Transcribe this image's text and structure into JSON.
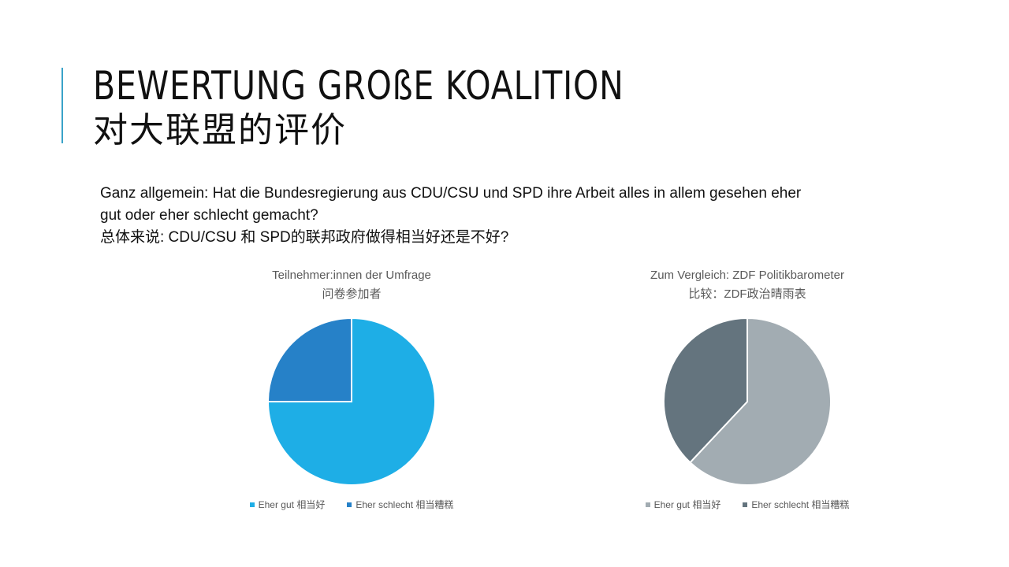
{
  "slide": {
    "title_de": "BEWERTUNG GROßE KOALITION",
    "title_zh": "对大联盟的评价",
    "question_line1": "Ganz allgemein: Hat die Bundesregierung aus CDU/CSU und SPD ihre Arbeit alles in allem gesehen eher",
    "question_line2": "gut oder eher schlecht gemacht?",
    "question_line3": "总体来说: CDU/CSU 和 SPD的联邦政府做得相当好还是不好?"
  },
  "chart_data": [
    {
      "type": "pie",
      "title": "Teilnehmer:innen der Umfrage",
      "subtitle": "问卷参加者",
      "categories": [
        "Eher gut 相当好",
        "Eher schlecht 相当糟糕"
      ],
      "values": [
        75,
        25
      ],
      "colors": [
        "#1eaee6",
        "#2681c8"
      ],
      "legend": "bottom"
    },
    {
      "type": "pie",
      "title": "Zum Vergleich: ZDF Politikbarometer",
      "subtitle": "比较：ZDF政治晴雨表",
      "categories": [
        "Eher gut 相当好",
        "Eher schlecht 相当糟糕"
      ],
      "values": [
        62,
        38
      ],
      "colors": [
        "#a2acb2",
        "#64747e"
      ],
      "legend": "bottom"
    }
  ]
}
